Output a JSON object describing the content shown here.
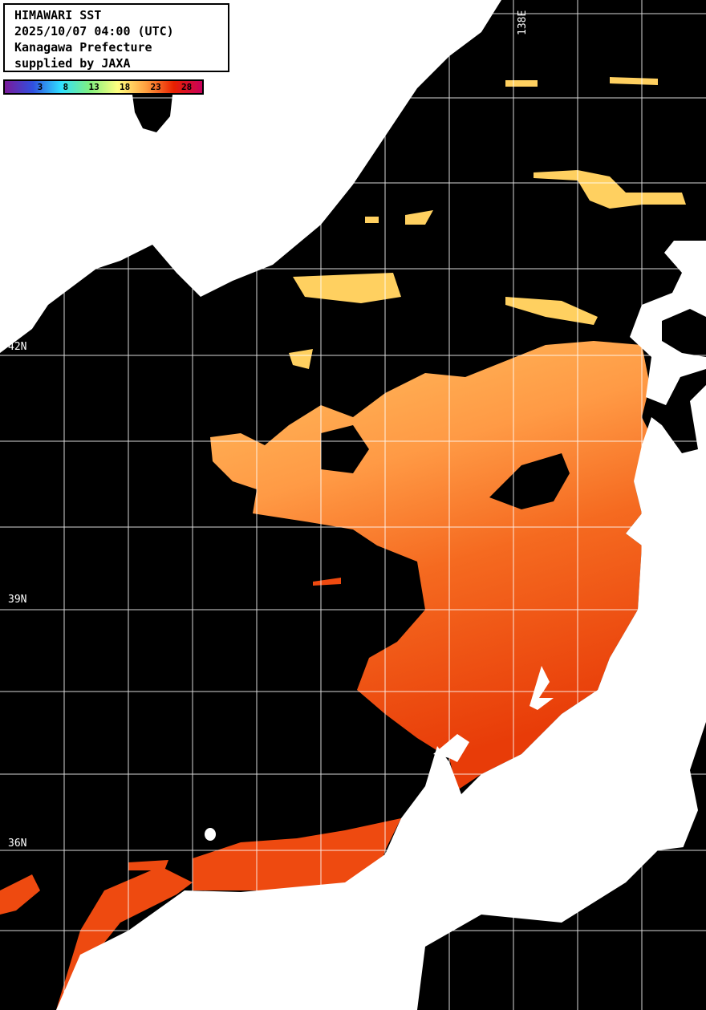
{
  "header": {
    "title": "HIMAWARI SST",
    "datetime": "2025/10/07 04:00 (UTC)",
    "region": "Kanagawa Prefecture",
    "credit": "supplied by JAXA"
  },
  "colorbar": {
    "ticks": [
      "3",
      "8",
      "13",
      "18",
      "23",
      "28"
    ],
    "colors": [
      "#7a1a9a",
      "#3050e0",
      "#30e0ff",
      "#80f080",
      "#ffff80",
      "#ffa040",
      "#e82000",
      "#c8005a"
    ]
  },
  "grid": {
    "lat_labels": [
      "42N",
      "39N",
      "36N"
    ],
    "lon_labels": [
      "138E"
    ]
  },
  "colors": {
    "land": "#ffffff",
    "no_data": "#000000",
    "sst_cool": "#ffd060",
    "sst_mid": "#ff9a40",
    "sst_warm": "#f05010",
    "grid": "#ffffff"
  }
}
